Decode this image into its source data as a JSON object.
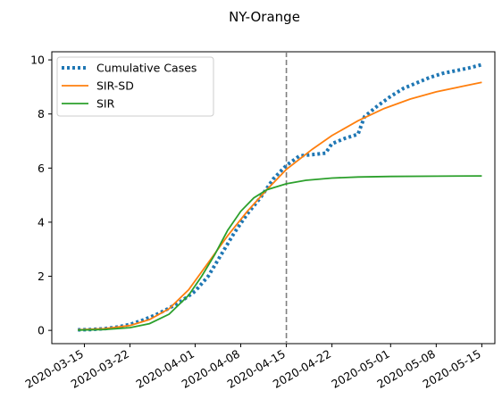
{
  "chart_data": {
    "type": "line",
    "title": "NY-Orange",
    "xlabel": "",
    "ylabel": "",
    "x_ticks": [
      "2020-03-15",
      "2020-03-22",
      "2020-04-01",
      "2020-04-08",
      "2020-04-15",
      "2020-04-22",
      "2020-05-01",
      "2020-05-08",
      "2020-05-15"
    ],
    "y_ticks": [
      "0",
      "2",
      "4",
      "6",
      "8",
      "10"
    ],
    "xlim": [
      "2020-03-10",
      "2020-05-17"
    ],
    "ylim": [
      -0.49,
      10.3
    ],
    "legend_position": "top-left",
    "vline": {
      "x": "2020-04-15",
      "style": "dashed",
      "color": "#7f7f7f"
    },
    "series": [
      {
        "name": "Cumulative Cases",
        "style": "dotted",
        "color": "#1f77b4",
        "points": [
          [
            "2020-03-14",
            0.02
          ],
          [
            "2020-03-16",
            0.03
          ],
          [
            "2020-03-18",
            0.06
          ],
          [
            "2020-03-20",
            0.12
          ],
          [
            "2020-03-22",
            0.22
          ],
          [
            "2020-03-24",
            0.38
          ],
          [
            "2020-03-26",
            0.58
          ],
          [
            "2020-03-28",
            0.82
          ],
          [
            "2020-03-30",
            1.1
          ],
          [
            "2020-04-01",
            1.45
          ],
          [
            "2020-04-03",
            2.0
          ],
          [
            "2020-04-05",
            2.8
          ],
          [
            "2020-04-07",
            3.6
          ],
          [
            "2020-04-09",
            4.3
          ],
          [
            "2020-04-11",
            4.9
          ],
          [
            "2020-04-13",
            5.6
          ],
          [
            "2020-04-15",
            6.1
          ],
          [
            "2020-04-17",
            6.45
          ],
          [
            "2020-04-19",
            6.5
          ],
          [
            "2020-04-21",
            6.55
          ],
          [
            "2020-04-22",
            6.9
          ],
          [
            "2020-04-24",
            7.1
          ],
          [
            "2020-04-26",
            7.25
          ],
          [
            "2020-04-27",
            7.9
          ],
          [
            "2020-04-29",
            8.3
          ],
          [
            "2020-05-01",
            8.65
          ],
          [
            "2020-05-03",
            8.95
          ],
          [
            "2020-05-05",
            9.15
          ],
          [
            "2020-05-07",
            9.35
          ],
          [
            "2020-05-09",
            9.5
          ],
          [
            "2020-05-11",
            9.6
          ],
          [
            "2020-05-13",
            9.7
          ],
          [
            "2020-05-15",
            9.82
          ]
        ]
      },
      {
        "name": "SIR-SD",
        "style": "solid",
        "color": "#ff7f0e",
        "points": [
          [
            "2020-03-14",
            0.02
          ],
          [
            "2020-03-18",
            0.06
          ],
          [
            "2020-03-22",
            0.18
          ],
          [
            "2020-03-25",
            0.4
          ],
          [
            "2020-03-28",
            0.8
          ],
          [
            "2020-03-31",
            1.5
          ],
          [
            "2020-04-03",
            2.5
          ],
          [
            "2020-04-06",
            3.5
          ],
          [
            "2020-04-09",
            4.4
          ],
          [
            "2020-04-12",
            5.2
          ],
          [
            "2020-04-15",
            5.95
          ],
          [
            "2020-04-19",
            6.7
          ],
          [
            "2020-04-22",
            7.2
          ],
          [
            "2020-04-26",
            7.75
          ],
          [
            "2020-04-30",
            8.2
          ],
          [
            "2020-05-04",
            8.55
          ],
          [
            "2020-05-08",
            8.82
          ],
          [
            "2020-05-12",
            9.02
          ],
          [
            "2020-05-15",
            9.17
          ]
        ]
      },
      {
        "name": "SIR",
        "style": "solid",
        "color": "#2ca02c",
        "points": [
          [
            "2020-03-14",
            0.01
          ],
          [
            "2020-03-18",
            0.03
          ],
          [
            "2020-03-22",
            0.1
          ],
          [
            "2020-03-25",
            0.25
          ],
          [
            "2020-03-28",
            0.6
          ],
          [
            "2020-03-31",
            1.3
          ],
          [
            "2020-04-02",
            2.0
          ],
          [
            "2020-04-04",
            2.8
          ],
          [
            "2020-04-06",
            3.7
          ],
          [
            "2020-04-08",
            4.4
          ],
          [
            "2020-04-10",
            4.9
          ],
          [
            "2020-04-12",
            5.2
          ],
          [
            "2020-04-15",
            5.42
          ],
          [
            "2020-04-18",
            5.55
          ],
          [
            "2020-04-22",
            5.63
          ],
          [
            "2020-04-26",
            5.67
          ],
          [
            "2020-05-01",
            5.69
          ],
          [
            "2020-05-08",
            5.7
          ],
          [
            "2020-05-15",
            5.71
          ]
        ]
      }
    ]
  }
}
